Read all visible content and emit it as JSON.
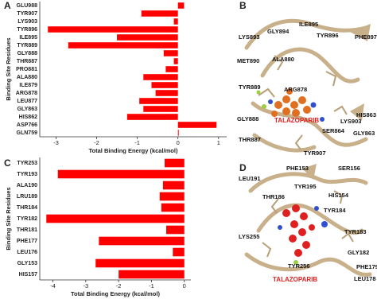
{
  "chart_data": [
    {
      "type": "barh",
      "panel_label": "A",
      "ylabel": "Binding Site Residues",
      "xlabel": "Total Binding Energy (kcal/mol)",
      "categories": [
        "GLU988",
        "TYR907",
        "LYS903",
        "TYR896",
        "ILE895",
        "TYR889",
        "GLY888",
        "THR887",
        "PRO881",
        "ALA880",
        "ILE879",
        "ARG878",
        "LEU877",
        "GLY863",
        "HIS862",
        "ASP766",
        "GLN759"
      ],
      "values": [
        0.15,
        -0.9,
        -0.1,
        -3.2,
        -1.5,
        -2.7,
        -0.35,
        -0.1,
        -0.3,
        -0.85,
        -0.65,
        -0.55,
        -0.95,
        -0.85,
        -1.25,
        0.95,
        0.02
      ],
      "color": "#ff0000",
      "xlim": [
        -3.4,
        1.2
      ],
      "xticks": [
        -3,
        -2,
        -1,
        0,
        1
      ]
    },
    {
      "type": "barh",
      "panel_label": "C",
      "ylabel": "Binding Site Residues",
      "xlabel": "Total Binding Energy (kcal/mol)",
      "categories": [
        "TYR253",
        "TYR193",
        "ALA190",
        "LRU189",
        "THR184",
        "TYR182",
        "THR181",
        "PHE177",
        "LEU176",
        "GLY153",
        "HIS157"
      ],
      "values": [
        -0.6,
        -3.85,
        -0.65,
        -0.75,
        -0.7,
        -4.2,
        -0.55,
        -2.6,
        -0.35,
        -2.7,
        -2.0
      ],
      "color": "#ff0000",
      "xlim": [
        -4.4,
        0.2
      ],
      "xticks": [
        -4,
        -3,
        -2,
        -1,
        0
      ]
    }
  ],
  "structures": [
    {
      "panel_label": "B",
      "drug": "TALAZOPARIB",
      "residues": [
        "GLY894",
        "ILE895",
        "LYS893",
        "TYR896",
        "PHE897",
        "MET890",
        "ALA880",
        "TYR889",
        "ARG878",
        "HIS863",
        "LYS903",
        "GLY888",
        "THR887",
        "SER864",
        "GLY863",
        "TYR907"
      ]
    },
    {
      "panel_label": "D",
      "drug": "TALAZOPARIB",
      "residues": [
        "PHE153",
        "LEU191",
        "SER156",
        "TYR195",
        "HIS154",
        "THR186",
        "TYR184",
        "LYS255",
        "TYR183",
        "GLY182",
        "TYR256",
        "PHE179",
        "LEU178"
      ]
    }
  ]
}
